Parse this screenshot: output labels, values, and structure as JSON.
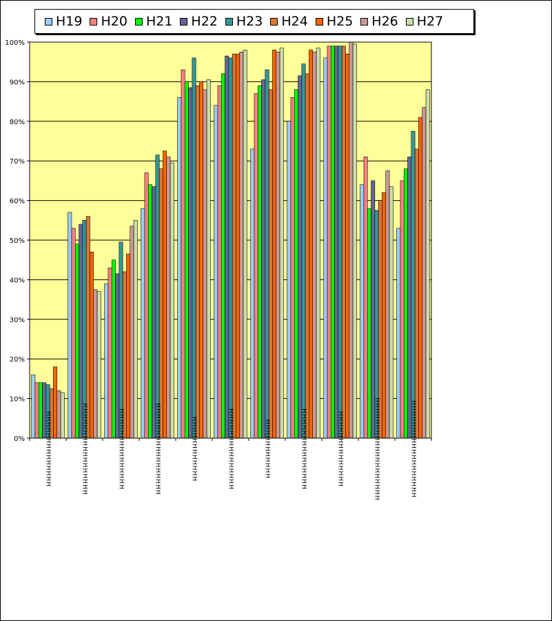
{
  "chart_data": {
    "type": "bar",
    "title": "",
    "xlabel": "",
    "ylabel": "",
    "ylim": [
      0,
      100
    ],
    "y_ticks": [
      "0%",
      "10%",
      "20%",
      "30%",
      "40%",
      "50%",
      "60%",
      "70%",
      "80%",
      "90%",
      "100%"
    ],
    "grid": true,
    "legend_position": "top",
    "plot_background": "#ffff99",
    "categories": [
      "HHHHHHHHHHHHHH",
      "HHHHHHHHHHHHHHHHH",
      "HHHHHHHHHHHHHHH",
      "HHHHHHHHHHHHHHHHH",
      "HHHHHHHHHHHH",
      "HHHHHHHHHHHHHHH",
      "HHHHHHHHHHH",
      "HHHHHHHHHHHHHHH",
      "HHHHHHHHHHHHHH",
      "HHHHHHHHHHHHHHHHHHH",
      "HHHHHHHHHHHHHHHHHH"
    ],
    "series": [
      {
        "name": "H19",
        "color": "#99ccff",
        "values": [
          16,
          57,
          39,
          58,
          86,
          84,
          73,
          80,
          96,
          64,
          53
        ]
      },
      {
        "name": "H20",
        "color": "#ff8080",
        "values": [
          14,
          53,
          43,
          67,
          93,
          89,
          87,
          86,
          99,
          71,
          65
        ]
      },
      {
        "name": "H21",
        "color": "#00ff00",
        "values": [
          14,
          49,
          45,
          64,
          90,
          92,
          89,
          88,
          99,
          58,
          68
        ]
      },
      {
        "name": "H22",
        "color": "#666699",
        "values": [
          14,
          54,
          41.5,
          63.5,
          88.5,
          96.5,
          90.5,
          91.5,
          99,
          65,
          71
        ]
      },
      {
        "name": "H23",
        "color": "#339999",
        "values": [
          13.5,
          55,
          49.5,
          71.5,
          96,
          96,
          93,
          94.5,
          99,
          57.5,
          77.5
        ]
      },
      {
        "name": "H24",
        "color": "#dd7733",
        "values": [
          12.5,
          56,
          42,
          68,
          89,
          97,
          88,
          92,
          99,
          60,
          73
        ]
      },
      {
        "name": "H25",
        "color": "#ff6600",
        "values": [
          18,
          47,
          46.5,
          72.5,
          90,
          97,
          98,
          98,
          97,
          62,
          81
        ]
      },
      {
        "name": "H26",
        "color": "#cc9999",
        "values": [
          12,
          37.5,
          53.5,
          71,
          88,
          97.5,
          97.5,
          97.5,
          100,
          67.5,
          83.5
        ]
      },
      {
        "name": "H27",
        "color": "#ccddaa",
        "values": [
          11.5,
          37,
          55,
          69.5,
          90.5,
          98,
          98.5,
          98.5,
          99.5,
          63.5,
          88
        ]
      }
    ]
  }
}
